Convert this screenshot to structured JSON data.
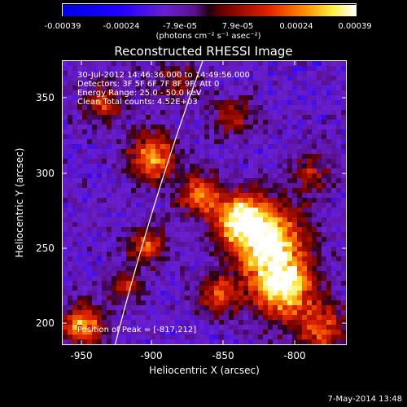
{
  "colorbar": {
    "tick_labels": [
      "-0.00039",
      "-0.00024",
      "-7.9e-05",
      "7.9e-05",
      "0.00024",
      "0.00039"
    ],
    "units": "(photons cm⁻² s⁻¹ asec⁻²)",
    "range": [
      -0.00039,
      0.00039
    ]
  },
  "title": "Reconstructed RHESSI Image",
  "info": {
    "time_range": "30-Jul-2012 14:46:36.000 to 14:49:56.000",
    "detectors": "Detectors: 3F 5F 6F 7F 8F 9F, Att 0",
    "energy": "Energy Range: 25.0 - 50.0 keV",
    "clean": "Clean      Total counts: 4.52E+03",
    "peak": "Position of Peak = [-817,212]"
  },
  "axes": {
    "xlabel": "Heliocentric X (arcsec)",
    "ylabel": "Heliocentric Y (arcsec)",
    "x_ticks": [
      "-950",
      "-900",
      "-850",
      "-800"
    ],
    "y_ticks": [
      "350",
      "300",
      "250",
      "200"
    ],
    "x_range": [
      -965,
      -770
    ],
    "y_range": [
      183,
      378
    ]
  },
  "footer": {
    "date": "7-May-2014 13:48"
  }
}
